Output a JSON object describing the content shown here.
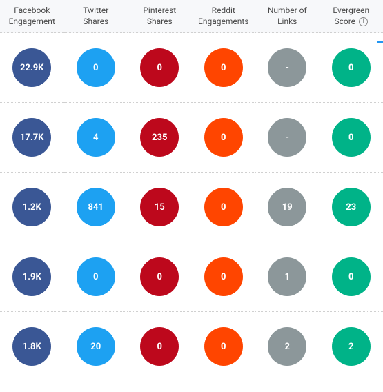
{
  "columns": [
    {
      "label_line1": "Facebook",
      "label_line2": "Engagement",
      "circle_color": "#3a5795",
      "has_info": false
    },
    {
      "label_line1": "Twitter",
      "label_line2": "Shares",
      "circle_color": "#1da1f2",
      "has_info": false
    },
    {
      "label_line1": "Pinterest",
      "label_line2": "Shares",
      "circle_color": "#bd081c",
      "has_info": false
    },
    {
      "label_line1": "Reddit",
      "label_line2": "Engagements",
      "circle_color": "#ff4500",
      "has_info": false
    },
    {
      "label_line1": "Number of",
      "label_line2": "Links",
      "circle_color": "#8c979a",
      "has_info": false
    },
    {
      "label_line1": "Evergreen",
      "label_line2": "Score",
      "circle_color": "#00b388",
      "has_info": true
    }
  ],
  "rows": [
    [
      "22.9K",
      "0",
      "0",
      "0",
      "-",
      "0"
    ],
    [
      "17.7K",
      "4",
      "235",
      "0",
      "-",
      "0"
    ],
    [
      "1.2K",
      "841",
      "15",
      "0",
      "19",
      "23"
    ],
    [
      "1.9K",
      "0",
      "0",
      "0",
      "1",
      "0"
    ],
    [
      "1.8K",
      "20",
      "0",
      "0",
      "2",
      "2"
    ]
  ],
  "typography": {
    "header_fontsize": 12,
    "circle_value_fontsize": 13,
    "header_color": "#4a4a4a",
    "circle_text_color": "#ffffff"
  },
  "layout": {
    "circle_diameter": 56,
    "row_divider_color": "#d0d0d0",
    "header_bg": "#f7f8fa",
    "body_bg": "#ffffff",
    "scroll_indicator_color": "#2196f3"
  }
}
